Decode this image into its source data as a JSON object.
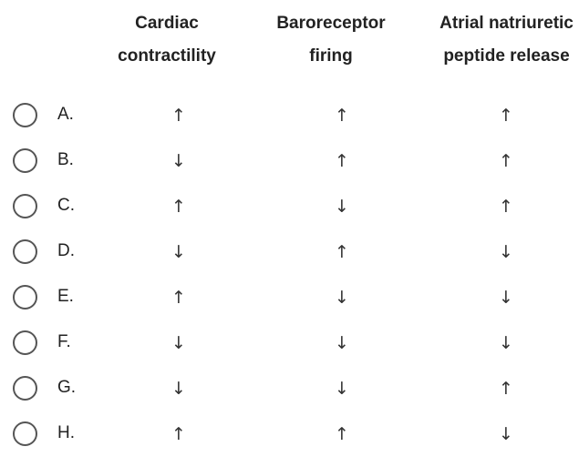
{
  "headers": [
    {
      "line1": "Cardiac",
      "line2": "contractility"
    },
    {
      "line1": "Baroreceptor",
      "line2": "firing"
    },
    {
      "line1": "Atrial natriuretic",
      "line2": "peptide release"
    }
  ],
  "options": [
    {
      "label": "A.",
      "arrows": [
        "↑",
        "↑",
        "↑"
      ]
    },
    {
      "label": "B.",
      "arrows": [
        "↓",
        "↑",
        "↑"
      ]
    },
    {
      "label": "C.",
      "arrows": [
        "↑",
        "↓",
        "↑"
      ]
    },
    {
      "label": "D.",
      "arrows": [
        "↓",
        "↑",
        "↓"
      ]
    },
    {
      "label": "E.",
      "arrows": [
        "↑",
        "↓",
        "↓"
      ]
    },
    {
      "label": "F.",
      "arrows": [
        "↓",
        "↓",
        "↓"
      ]
    },
    {
      "label": "G.",
      "arrows": [
        "↓",
        "↓",
        "↑"
      ]
    },
    {
      "label": "H.",
      "arrows": [
        "↑",
        "↑",
        "↓"
      ]
    }
  ]
}
